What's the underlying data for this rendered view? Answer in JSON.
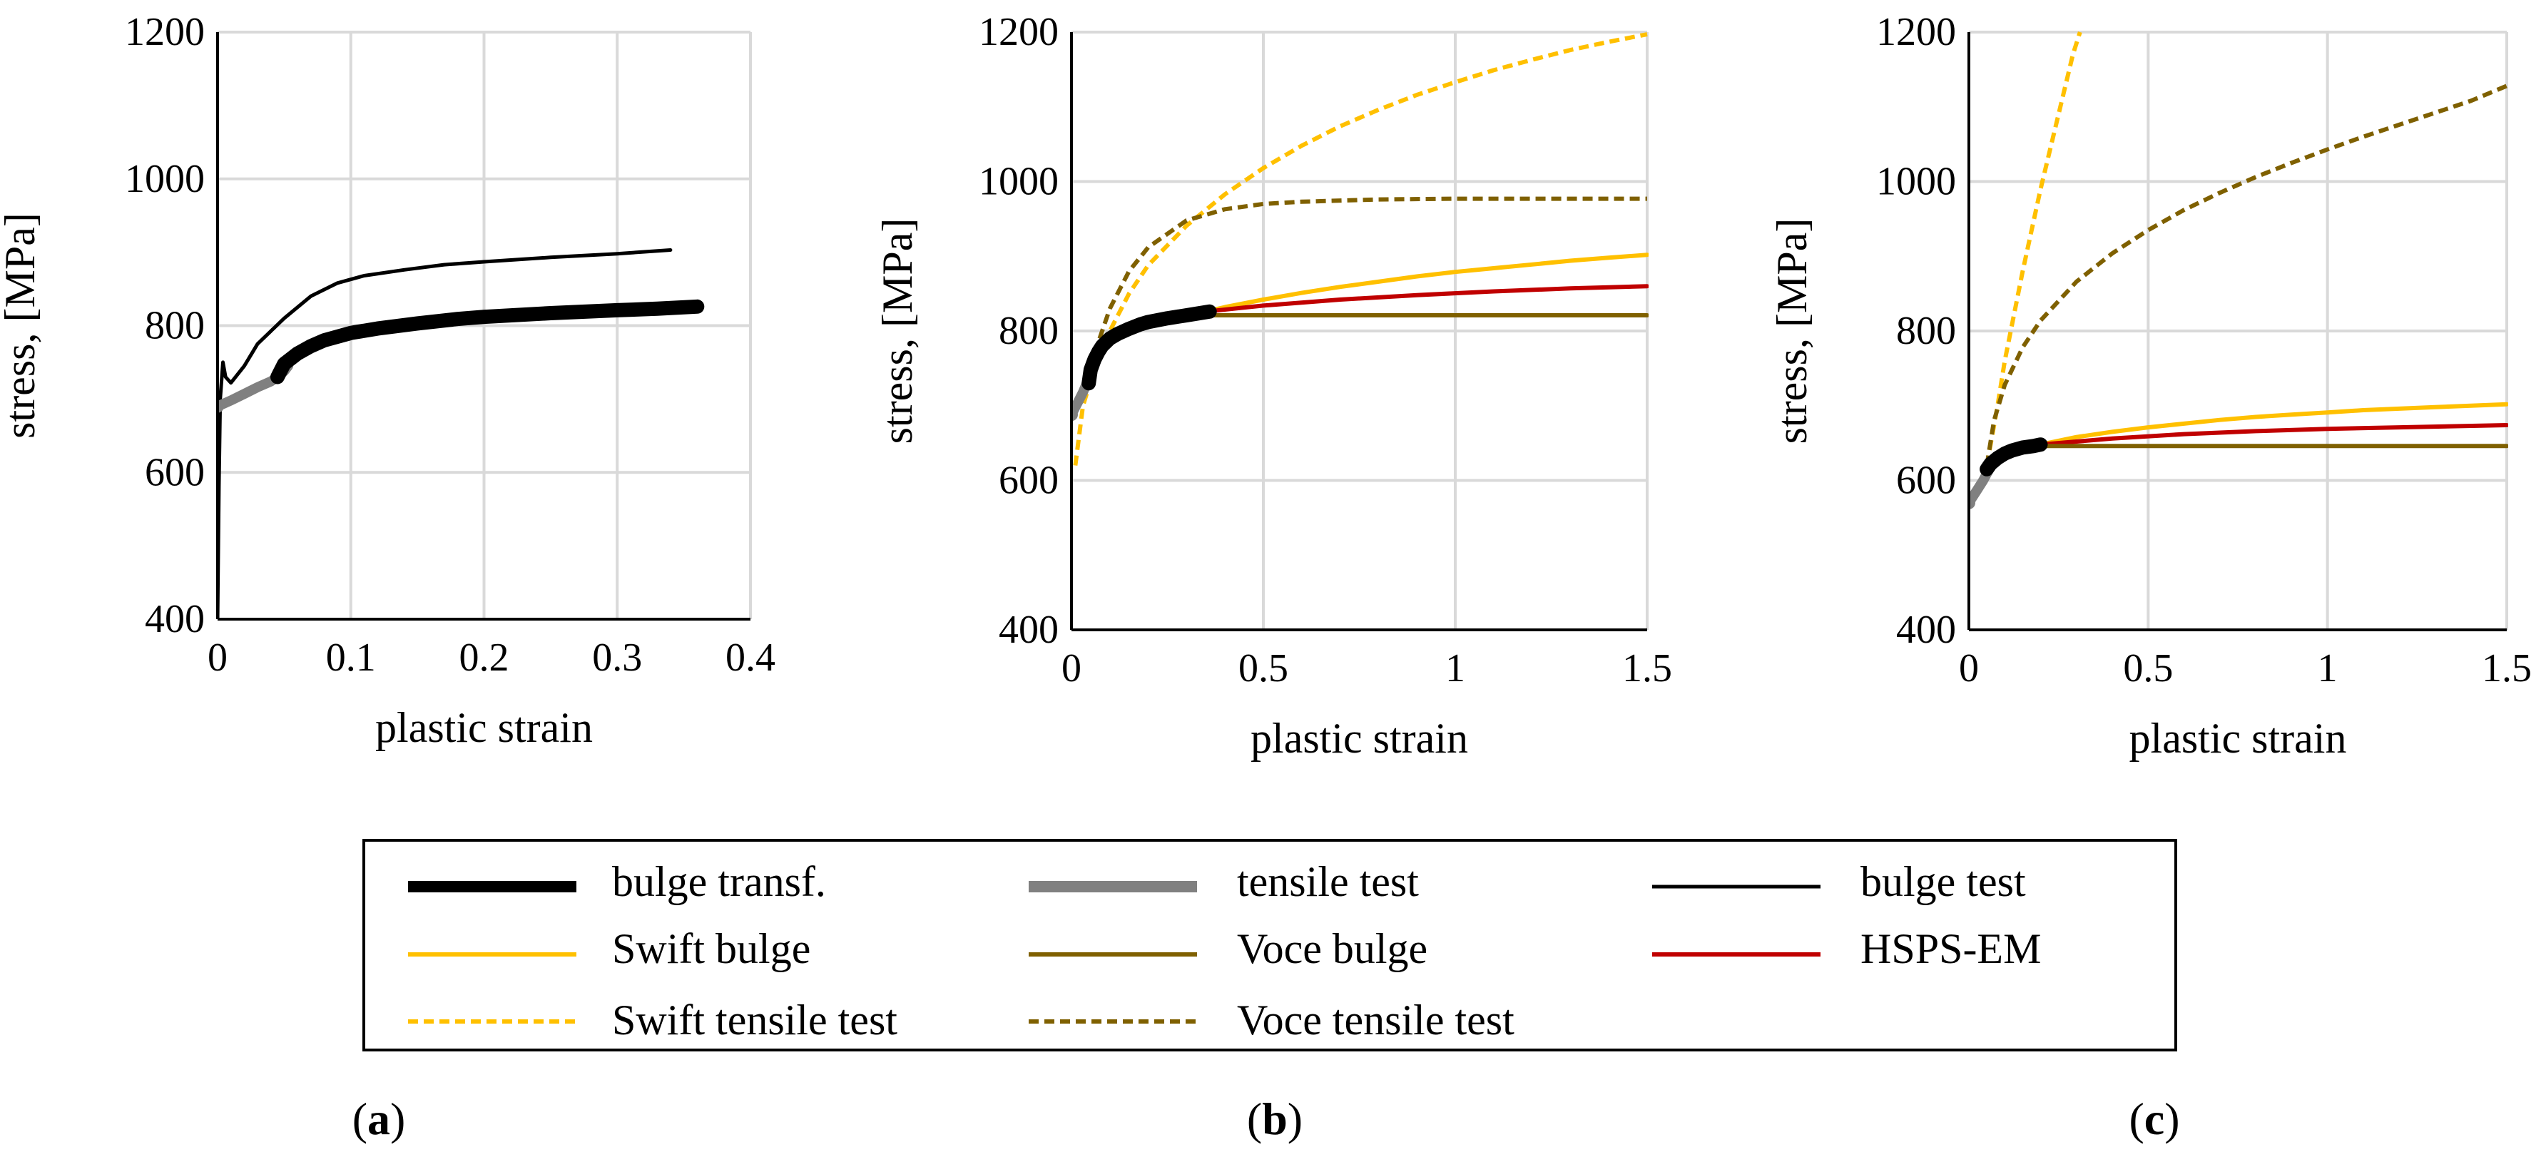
{
  "styles": {
    "bulge_transf": "#000000",
    "tensile_test": "#808080",
    "bulge_test": "#000000",
    "swift": "#FFC000",
    "voce": "#7F6000",
    "hsps": "#C00000",
    "grid": "#d9d9d9"
  },
  "legend": {
    "bulge_transf": "bulge transf.",
    "tensile_test": "tensile test",
    "bulge_test": "bulge test",
    "swift_bulge": "Swift bulge",
    "voce_bulge": "Voce bulge",
    "hsps_em": "HSPS-EM",
    "swift_tensile": "Swift tensile test",
    "voce_tensile": "Voce tensile test"
  },
  "chart_data": [
    {
      "type": "line",
      "panel": "(a)",
      "panel_letter": "a",
      "xlabel": "plastic strain",
      "ylabel": "stress, [MPa]",
      "xlim": [
        0,
        0.4
      ],
      "ylim": [
        400,
        1200
      ],
      "xticks": [
        0,
        0.1,
        0.2,
        0.3,
        0.4
      ],
      "xtick_labels": [
        "0",
        "0.1",
        "0.2",
        "0.3",
        "0.4"
      ],
      "yticks": [
        400,
        600,
        800,
        1000,
        1200
      ],
      "ytick_labels": [
        "400",
        "600",
        "800",
        "1000",
        "1200"
      ],
      "series": [
        {
          "name": "bulge test",
          "key": "bulge_test",
          "x": [
            0,
            0.001,
            0.002,
            0.004,
            0.006,
            0.01,
            0.02,
            0.03,
            0.05,
            0.07,
            0.09,
            0.11,
            0.14,
            0.17,
            0.2,
            0.25,
            0.3,
            0.34
          ],
          "y": [
            400,
            580,
            700,
            750,
            730,
            722,
            745,
            775,
            810,
            840,
            858,
            868,
            876,
            883,
            887,
            893,
            898,
            903
          ]
        },
        {
          "name": "tensile test",
          "key": "tensile_test",
          "x": [
            0,
            0.01,
            0.02,
            0.03,
            0.04,
            0.045,
            0.05,
            0.053
          ],
          "y": [
            690,
            698,
            707,
            716,
            724,
            730,
            738,
            745
          ]
        },
        {
          "name": "bulge transf.",
          "key": "bulge_transf",
          "x": [
            0.045,
            0.05,
            0.06,
            0.07,
            0.08,
            0.1,
            0.12,
            0.15,
            0.18,
            0.2,
            0.25,
            0.3,
            0.33,
            0.36
          ],
          "y": [
            730,
            748,
            762,
            772,
            780,
            790,
            796,
            803,
            809,
            812,
            817,
            821,
            823,
            826
          ]
        }
      ]
    },
    {
      "type": "line",
      "panel": "(b)",
      "panel_letter": "b",
      "xlabel": "plastic strain",
      "ylabel": "stress, [MPa]",
      "xlim": [
        0,
        1.5
      ],
      "ylim": [
        400,
        1200
      ],
      "xticks": [
        0,
        0.5,
        1,
        1.5
      ],
      "xtick_labels": [
        "0",
        "0.5",
        "1",
        "1.5"
      ],
      "yticks": [
        400,
        600,
        800,
        1000,
        1200
      ],
      "ytick_labels": [
        "400",
        "600",
        "800",
        "1000",
        "1200"
      ],
      "series": [
        {
          "name": "Swift tensile test",
          "key": "swift_tensile",
          "x": [
            0.01,
            0.03,
            0.06,
            0.1,
            0.15,
            0.2,
            0.3,
            0.4,
            0.5,
            0.6,
            0.7,
            0.8,
            0.9,
            1.0,
            1.1,
            1.2,
            1.3,
            1.4,
            1.5
          ],
          "y": [
            620,
            700,
            750,
            800,
            850,
            888,
            941,
            983,
            1018,
            1048,
            1074,
            1096,
            1116,
            1133,
            1149,
            1163,
            1176,
            1187,
            1197
          ]
        },
        {
          "name": "Voce tensile test",
          "key": "voce_tensile",
          "x": [
            0.01,
            0.03,
            0.06,
            0.1,
            0.15,
            0.2,
            0.3,
            0.4,
            0.5,
            0.6,
            0.8,
            1.0,
            1.2,
            1.5
          ],
          "y": [
            690,
            720,
            770,
            830,
            880,
            912,
            948,
            963,
            970,
            973,
            976,
            977,
            977,
            977
          ]
        },
        {
          "name": "Swift bulge",
          "key": "swift",
          "x": [
            0.35,
            0.4,
            0.5,
            0.6,
            0.7,
            0.8,
            0.9,
            1.0,
            1.1,
            1.2,
            1.3,
            1.4,
            1.5
          ],
          "y": [
            826,
            832,
            842,
            851,
            859,
            866,
            873,
            879,
            884,
            889,
            894,
            898,
            902
          ]
        },
        {
          "name": "HSPS-EM",
          "key": "hsps",
          "x": [
            0.35,
            0.5,
            0.7,
            0.9,
            1.1,
            1.3,
            1.5
          ],
          "y": [
            826,
            834,
            842,
            848,
            853,
            857,
            860
          ]
        },
        {
          "name": "Voce bulge",
          "key": "voce",
          "x": [
            0.35,
            0.5,
            0.8,
            1.0,
            1.5
          ],
          "y": [
            821,
            821,
            821,
            821,
            821
          ]
        },
        {
          "name": "tensile test",
          "key": "tensile_test",
          "x": [
            0,
            0.01,
            0.02,
            0.03,
            0.04,
            0.05
          ],
          "y": [
            688,
            698,
            708,
            718,
            730,
            742
          ]
        },
        {
          "name": "bulge transf.",
          "key": "bulge_transf",
          "x": [
            0.045,
            0.05,
            0.06,
            0.07,
            0.08,
            0.1,
            0.12,
            0.15,
            0.18,
            0.2,
            0.25,
            0.3,
            0.36
          ],
          "y": [
            730,
            748,
            762,
            772,
            780,
            790,
            796,
            803,
            809,
            812,
            817,
            821,
            826
          ]
        }
      ]
    },
    {
      "type": "line",
      "panel": "(c)",
      "panel_letter": "c",
      "xlabel": "plastic strain",
      "ylabel": "stress, [MPa]",
      "xlim": [
        0,
        1.5
      ],
      "ylim": [
        400,
        1200
      ],
      "xticks": [
        0,
        0.5,
        1,
        1.5
      ],
      "xtick_labels": [
        "0",
        "0.5",
        "1",
        "1.5"
      ],
      "yticks": [
        400,
        600,
        800,
        1000,
        1200
      ],
      "ytick_labels": [
        "400",
        "600",
        "800",
        "1000",
        "1200"
      ],
      "series": [
        {
          "name": "Swift tensile test",
          "key": "swift_tensile",
          "x": [
            0.05,
            0.08,
            0.1,
            0.15,
            0.2,
            0.25,
            0.29,
            0.31
          ],
          "y": [
            620,
            700,
            760,
            880,
            990,
            1090,
            1170,
            1200
          ]
        },
        {
          "name": "Voce tensile test",
          "key": "voce_tensile",
          "x": [
            0.05,
            0.07,
            0.1,
            0.15,
            0.2,
            0.3,
            0.4,
            0.5,
            0.6,
            0.7,
            0.8,
            0.9,
            1.0,
            1.1,
            1.2,
            1.3,
            1.4,
            1.5
          ],
          "y": [
            620,
            680,
            728,
            778,
            814,
            866,
            904,
            935,
            962,
            985,
            1006,
            1025,
            1043,
            1060,
            1076,
            1092,
            1108,
            1128
          ]
        },
        {
          "name": "Swift bulge",
          "key": "swift",
          "x": [
            0.2,
            0.3,
            0.4,
            0.5,
            0.6,
            0.7,
            0.8,
            0.9,
            1.0,
            1.1,
            1.2,
            1.3,
            1.4,
            1.5
          ],
          "y": [
            648,
            658,
            665,
            671,
            676,
            681,
            685,
            688,
            691,
            694,
            696,
            698,
            700,
            702
          ]
        },
        {
          "name": "HSPS-EM",
          "key": "hsps",
          "x": [
            0.2,
            0.4,
            0.6,
            0.8,
            1.0,
            1.2,
            1.5
          ],
          "y": [
            648,
            656,
            662,
            666,
            669,
            671,
            674
          ]
        },
        {
          "name": "Voce bulge",
          "key": "voce",
          "x": [
            0.2,
            0.5,
            1.0,
            1.5
          ],
          "y": [
            646,
            646,
            646,
            646
          ]
        },
        {
          "name": "tensile test",
          "key": "tensile_test",
          "x": [
            0,
            0.02,
            0.04,
            0.06
          ],
          "y": [
            570,
            585,
            600,
            618
          ]
        },
        {
          "name": "bulge transf.",
          "key": "bulge_transf",
          "x": [
            0.05,
            0.06,
            0.08,
            0.1,
            0.12,
            0.15,
            0.18,
            0.2
          ],
          "y": [
            615,
            622,
            630,
            636,
            640,
            644,
            646,
            648
          ]
        }
      ]
    }
  ]
}
